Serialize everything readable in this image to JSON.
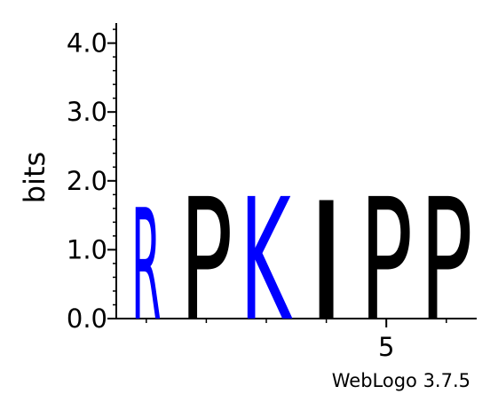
{
  "chart_data": {
    "type": "sequence-logo",
    "ylabel": "bits",
    "ylim": [
      0,
      4.3
    ],
    "yticks": [
      {
        "value": 0,
        "label": "0.0"
      },
      {
        "value": 1,
        "label": "1.0"
      },
      {
        "value": 2,
        "label": "2.0"
      },
      {
        "value": 3,
        "label": "3.0"
      },
      {
        "value": 4,
        "label": "4.0"
      }
    ],
    "y_minor_step": 0.2,
    "xlim": [
      0.5,
      6.5
    ],
    "xticks": [
      {
        "position": 5,
        "label": "5"
      }
    ],
    "x_minor_positions": [
      1,
      2,
      3,
      4,
      5,
      6
    ],
    "positions": [
      {
        "position": 1,
        "letter": "R",
        "bits": 1.62,
        "color": "#0000ff"
      },
      {
        "position": 2,
        "letter": "P",
        "bits": 1.78,
        "color": "#000000"
      },
      {
        "position": 3,
        "letter": "K",
        "bits": 1.78,
        "color": "#0000ff"
      },
      {
        "position": 4,
        "letter": "I",
        "bits": 1.72,
        "color": "#000000"
      },
      {
        "position": 5,
        "letter": "P",
        "bits": 1.78,
        "color": "#000000"
      },
      {
        "position": 6,
        "letter": "P",
        "bits": 1.78,
        "color": "#000000"
      }
    ]
  },
  "footer": {
    "credit": "WebLogo 3.7.5"
  }
}
